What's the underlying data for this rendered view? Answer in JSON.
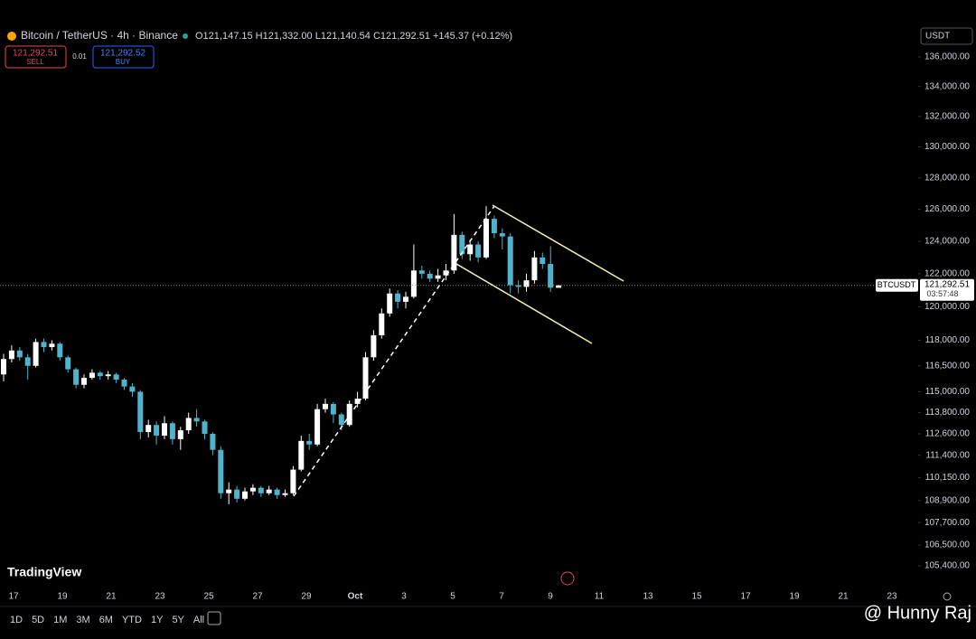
{
  "header": {
    "symbol_title": "Bitcoin / TetherUS · 4h · Binance",
    "ohlc": "O121,147.15 H121,332.00 L121,140.54 C121,292.51 +145.37 (+0.12%)",
    "sell_price": "121,292.51",
    "sell_label": "SELL",
    "spread": "0.01",
    "buy_price": "121,292.52",
    "buy_label": "BUY",
    "currency": "USDT"
  },
  "logo": "TradingView",
  "timeframes": [
    "1D",
    "5D",
    "1M",
    "3M",
    "6M",
    "YTD",
    "1Y",
    "5Y",
    "All"
  ],
  "watermark": "@ Hunny Raj",
  "chart_data": {
    "type": "candlestick",
    "log_scale": true,
    "up_color": "#ffffff",
    "down_color": "#4fb3cc",
    "open": [
      116000,
      116900,
      117400,
      117000,
      116500,
      117900,
      117600,
      117800,
      117000,
      116300,
      115400,
      115800,
      116100,
      115900,
      116000,
      115700,
      115300,
      115000,
      112700,
      113100,
      112500,
      113200,
      112300,
      112800,
      113500,
      113300,
      112600,
      111700,
      109300,
      109500,
      109000,
      109400,
      109600,
      109300,
      109500,
      109200,
      109300,
      110600,
      112200,
      112000,
      114000,
      114300,
      113700,
      113100,
      114300,
      114600,
      117000,
      118300,
      119600,
      120800,
      120300,
      120600,
      122200,
      122000,
      121700,
      121900,
      122200,
      124400,
      123200,
      123800,
      123000,
      125400,
      124500,
      124300,
      121300,
      121200,
      121600,
      123000,
      122600,
      121147.15
    ],
    "high": [
      117200,
      117700,
      117600,
      117200,
      118100,
      118100,
      118000,
      117900,
      117100,
      116400,
      116000,
      116300,
      116200,
      116200,
      116100,
      115800,
      115500,
      115100,
      113400,
      113300,
      113600,
      113300,
      113000,
      113800,
      114000,
      113400,
      112700,
      111900,
      109900,
      109700,
      109600,
      109800,
      109700,
      109700,
      109600,
      109500,
      110800,
      112500,
      112600,
      114300,
      114600,
      114400,
      113800,
      114500,
      115000,
      117300,
      118600,
      119900,
      121100,
      121000,
      120900,
      123800,
      122500,
      122200,
      122300,
      122600,
      125700,
      124600,
      124100,
      124000,
      126200,
      125600,
      124800,
      124500,
      121600,
      122000,
      123400,
      123300,
      123700,
      121332
    ],
    "low": [
      115600,
      116700,
      116800,
      115700,
      116400,
      117300,
      117400,
      116800,
      116100,
      115200,
      115200,
      115700,
      115700,
      115700,
      115500,
      115100,
      114700,
      112300,
      112400,
      112000,
      112300,
      112000,
      111700,
      112600,
      113000,
      112300,
      111400,
      109000,
      108700,
      108800,
      108900,
      109200,
      109100,
      109200,
      109000,
      109100,
      109200,
      110500,
      111700,
      111900,
      113800,
      113200,
      112800,
      113000,
      114100,
      114500,
      116800,
      118100,
      119400,
      119900,
      119900,
      120500,
      121700,
      121500,
      121500,
      121600,
      122000,
      122900,
      122800,
      122700,
      122900,
      124200,
      123500,
      120800,
      120800,
      120900,
      121400,
      122300,
      120900,
      121140.54
    ],
    "close": [
      116900,
      117400,
      117000,
      116500,
      117900,
      117600,
      117800,
      117000,
      116300,
      115400,
      115800,
      116100,
      115900,
      116000,
      115700,
      115300,
      115000,
      112700,
      113100,
      112500,
      113200,
      112300,
      112800,
      113500,
      113300,
      112600,
      111700,
      109300,
      109500,
      109000,
      109400,
      109600,
      109300,
      109500,
      109200,
      109300,
      110600,
      112200,
      112000,
      114000,
      114300,
      113700,
      113100,
      114300,
      114600,
      117000,
      118300,
      119600,
      120800,
      120300,
      120600,
      122200,
      122000,
      121700,
      121900,
      122200,
      124400,
      123200,
      123800,
      123000,
      125400,
      124500,
      124300,
      121300,
      121200,
      121600,
      123000,
      122600,
      121150,
      121292.51
    ],
    "ylim": [
      104260,
      138040
    ],
    "yticks": [
      {
        "value": 136000,
        "label": "136,000.00"
      },
      {
        "value": 134000,
        "label": "134,000.00"
      },
      {
        "value": 132000,
        "label": "132,000.00"
      },
      {
        "value": 130000,
        "label": "130,000.00"
      },
      {
        "value": 128000,
        "label": "128,000.00"
      },
      {
        "value": 126000,
        "label": "126,000.00"
      },
      {
        "value": 124000,
        "label": "124,000.00"
      },
      {
        "value": 122000,
        "label": "122,000.00"
      },
      {
        "value": 120000,
        "label": "120,000.00"
      },
      {
        "value": 118000,
        "label": "118,000.00"
      },
      {
        "value": 116500,
        "label": "116,500.00"
      },
      {
        "value": 115000,
        "label": "115,000.00"
      },
      {
        "value": 113800,
        "label": "113,800.00"
      },
      {
        "value": 112600,
        "label": "112,600.00"
      },
      {
        "value": 111400,
        "label": "111,400.00"
      },
      {
        "value": 110150,
        "label": "110,150.00"
      },
      {
        "value": 108900,
        "label": "108,900.00"
      },
      {
        "value": 107700,
        "label": "107,700.00"
      },
      {
        "value": 106500,
        "label": "106,500.00"
      },
      {
        "value": 105400,
        "label": "105,400.00"
      }
    ],
    "x_tick_labels": [
      "17",
      "19",
      "21",
      "23",
      "25",
      "27",
      "29",
      "Oct",
      "3",
      "5",
      "7",
      "9",
      "11",
      "13",
      "15",
      "17",
      "19",
      "21",
      "23"
    ],
    "last_price": {
      "value": 121292.51,
      "label": "121,292.51"
    },
    "price_symbol": "BTCUSDT",
    "countdown": "03:57:48"
  }
}
